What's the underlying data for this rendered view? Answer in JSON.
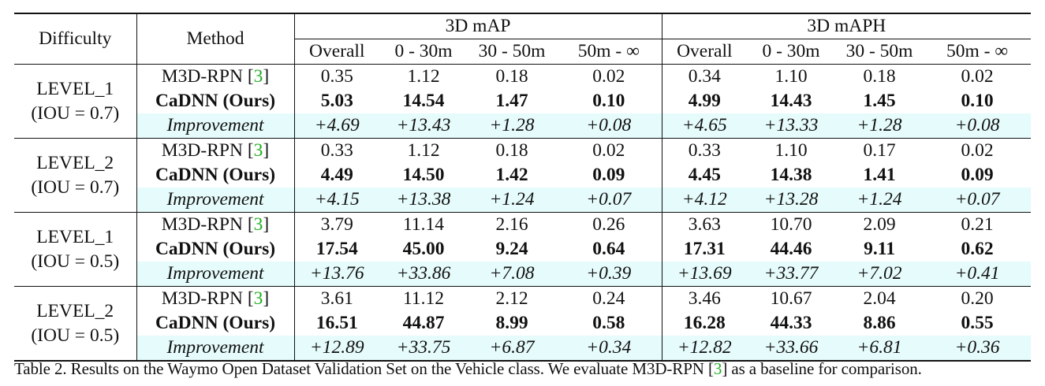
{
  "header": {
    "difficulty": "Difficulty",
    "method": "Method",
    "group_map": "3D mAP",
    "group_maph": "3D mAPH",
    "cols": [
      "Overall",
      "0 - 30m",
      "30 - 50m",
      "50m - ∞"
    ]
  },
  "groups": [
    {
      "level": "LEVEL_1",
      "iou": "(IOU = 0.7)",
      "baseline": {
        "name": "M3D-RPN [",
        "ref": "3",
        "close": "]",
        "map": [
          "0.35",
          "1.12",
          "0.18",
          "0.02"
        ],
        "maph": [
          "0.34",
          "1.10",
          "0.18",
          "0.02"
        ]
      },
      "ours": {
        "name": "CaDNN (Ours)",
        "map": [
          "5.03",
          "14.54",
          "1.47",
          "0.10"
        ],
        "maph": [
          "4.99",
          "14.43",
          "1.45",
          "0.10"
        ]
      },
      "improvement": {
        "name": "Improvement",
        "map": [
          "+4.69",
          "+13.43",
          "+1.28",
          "+0.08"
        ],
        "maph": [
          "+4.65",
          "+13.33",
          "+1.28",
          "+0.08"
        ]
      }
    },
    {
      "level": "LEVEL_2",
      "iou": "(IOU = 0.7)",
      "baseline": {
        "name": "M3D-RPN [",
        "ref": "3",
        "close": "]",
        "map": [
          "0.33",
          "1.12",
          "0.18",
          "0.02"
        ],
        "maph": [
          "0.33",
          "1.10",
          "0.17",
          "0.02"
        ]
      },
      "ours": {
        "name": "CaDNN (Ours)",
        "map": [
          "4.49",
          "14.50",
          "1.42",
          "0.09"
        ],
        "maph": [
          "4.45",
          "14.38",
          "1.41",
          "0.09"
        ]
      },
      "improvement": {
        "name": "Improvement",
        "map": [
          "+4.15",
          "+13.38",
          "+1.24",
          "+0.07"
        ],
        "maph": [
          "+4.12",
          "+13.28",
          "+1.24",
          "+0.07"
        ]
      }
    },
    {
      "level": "LEVEL_1",
      "iou": "(IOU = 0.5)",
      "baseline": {
        "name": "M3D-RPN [",
        "ref": "3",
        "close": "]",
        "map": [
          "3.79",
          "11.14",
          "2.16",
          "0.26"
        ],
        "maph": [
          "3.63",
          "10.70",
          "2.09",
          "0.21"
        ]
      },
      "ours": {
        "name": "CaDNN (Ours)",
        "map": [
          "17.54",
          "45.00",
          "9.24",
          "0.64"
        ],
        "maph": [
          "17.31",
          "44.46",
          "9.11",
          "0.62"
        ]
      },
      "improvement": {
        "name": "Improvement",
        "map": [
          "+13.76",
          "+33.86",
          "+7.08",
          "+0.39"
        ],
        "maph": [
          "+13.69",
          "+33.77",
          "+7.02",
          "+0.41"
        ]
      }
    },
    {
      "level": "LEVEL_2",
      "iou": "(IOU = 0.5)",
      "baseline": {
        "name": "M3D-RPN [",
        "ref": "3",
        "close": "]",
        "map": [
          "3.61",
          "11.12",
          "2.12",
          "0.24"
        ],
        "maph": [
          "3.46",
          "10.67",
          "2.04",
          "0.20"
        ]
      },
      "ours": {
        "name": "CaDNN (Ours)",
        "map": [
          "16.51",
          "44.87",
          "8.99",
          "0.58"
        ],
        "maph": [
          "16.28",
          "44.33",
          "8.86",
          "0.55"
        ]
      },
      "improvement": {
        "name": "Improvement",
        "map": [
          "+12.89",
          "+33.75",
          "+6.87",
          "+0.34"
        ],
        "maph": [
          "+12.82",
          "+33.66",
          "+6.81",
          "+0.36"
        ]
      }
    }
  ],
  "caption": {
    "before": "Table 2. Results on the Waymo Open Dataset Validation Set on the Vehicle class. We evaluate M3D-RPN [",
    "ref": "3",
    "after": "] as a baseline for comparison."
  },
  "colors": {
    "improvement_row_bg": "#e6fbfb",
    "reference_link": "#1fb01f"
  }
}
